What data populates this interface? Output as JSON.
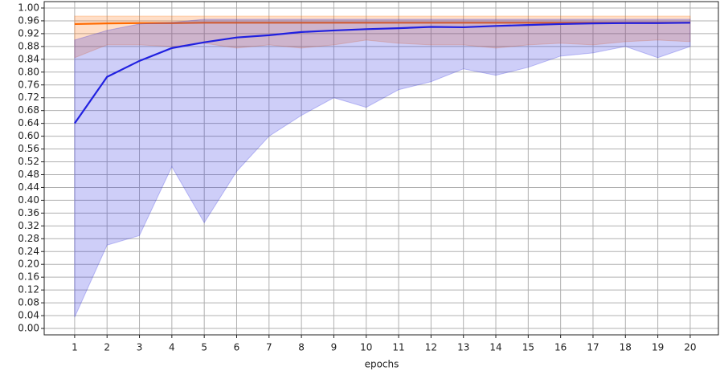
{
  "chart_data": {
    "type": "line",
    "xlabel": "epochs",
    "x": [
      1,
      2,
      3,
      4,
      5,
      6,
      7,
      8,
      9,
      10,
      11,
      12,
      13,
      14,
      15,
      16,
      17,
      18,
      19,
      20
    ],
    "series": [
      {
        "color": "#ff6a00",
        "values": [
          0.95,
          0.952,
          0.953,
          0.953,
          0.954,
          0.954,
          0.954,
          0.954,
          0.954,
          0.954,
          0.954,
          0.954,
          0.954,
          0.954,
          0.954,
          0.954,
          0.954,
          0.954,
          0.954,
          0.954
        ],
        "lower": [
          0.845,
          0.885,
          0.885,
          0.88,
          0.89,
          0.875,
          0.885,
          0.875,
          0.885,
          0.9,
          0.89,
          0.885,
          0.885,
          0.875,
          0.885,
          0.89,
          0.885,
          0.895,
          0.9,
          0.895
        ],
        "upper": [
          0.975,
          0.975,
          0.975,
          0.975,
          0.975,
          0.975,
          0.975,
          0.975,
          0.975,
          0.975,
          0.975,
          0.975,
          0.975,
          0.975,
          0.975,
          0.975,
          0.975,
          0.975,
          0.975,
          0.975
        ]
      },
      {
        "color": "#2020e0",
        "values": [
          0.64,
          0.785,
          0.835,
          0.875,
          0.893,
          0.908,
          0.915,
          0.925,
          0.93,
          0.934,
          0.937,
          0.941,
          0.94,
          0.944,
          0.947,
          0.95,
          0.952,
          0.953,
          0.953,
          0.954
        ],
        "lower": [
          0.035,
          0.26,
          0.29,
          0.505,
          0.33,
          0.49,
          0.6,
          0.665,
          0.72,
          0.69,
          0.745,
          0.77,
          0.81,
          0.79,
          0.815,
          0.85,
          0.86,
          0.88,
          0.845,
          0.88
        ],
        "upper": [
          0.9,
          0.93,
          0.95,
          0.955,
          0.965,
          0.965,
          0.965,
          0.965,
          0.965,
          0.965,
          0.965,
          0.965,
          0.965,
          0.965,
          0.965,
          0.965,
          0.965,
          0.965,
          0.965,
          0.965
        ]
      }
    ],
    "xlim": [
      0.06,
      20.87
    ],
    "ylim": [
      -0.02,
      1.02
    ],
    "xticks": [
      1,
      2,
      3,
      4,
      5,
      6,
      7,
      8,
      9,
      10,
      11,
      12,
      13,
      14,
      15,
      16,
      17,
      18,
      19,
      20
    ],
    "yticks": [
      {
        "value": 0,
        "label": "0.00"
      },
      {
        "value": 0.04,
        "label": "0.04"
      },
      {
        "value": 0.08,
        "label": "0.08"
      },
      {
        "value": 0.12,
        "label": "0.12"
      },
      {
        "value": 0.16,
        "label": "0.16"
      },
      {
        "value": 0.2,
        "label": "0.20"
      },
      {
        "value": 0.24,
        "label": "0.24"
      },
      {
        "value": 0.28,
        "label": "0.28"
      },
      {
        "value": 0.32,
        "label": "0.32"
      },
      {
        "value": 0.36,
        "label": "0.36"
      },
      {
        "value": 0.4,
        "label": "0.40"
      },
      {
        "value": 0.44,
        "label": "0.44"
      },
      {
        "value": 0.48,
        "label": "0.48"
      },
      {
        "value": 0.52,
        "label": "0.52"
      },
      {
        "value": 0.56,
        "label": "0.56"
      },
      {
        "value": 0.6,
        "label": "0.60"
      },
      {
        "value": 0.64,
        "label": "0.64"
      },
      {
        "value": 0.68,
        "label": "0.68"
      },
      {
        "value": 0.72,
        "label": "0.72"
      },
      {
        "value": 0.76,
        "label": "0.76"
      },
      {
        "value": 0.8,
        "label": "0.80"
      },
      {
        "value": 0.84,
        "label": "0.84"
      },
      {
        "value": 0.88,
        "label": "0.88"
      },
      {
        "value": 0.92,
        "label": "0.92"
      },
      {
        "value": 0.96,
        "label": "0.96"
      },
      {
        "value": 1,
        "label": "1.00"
      }
    ],
    "grid": true
  }
}
